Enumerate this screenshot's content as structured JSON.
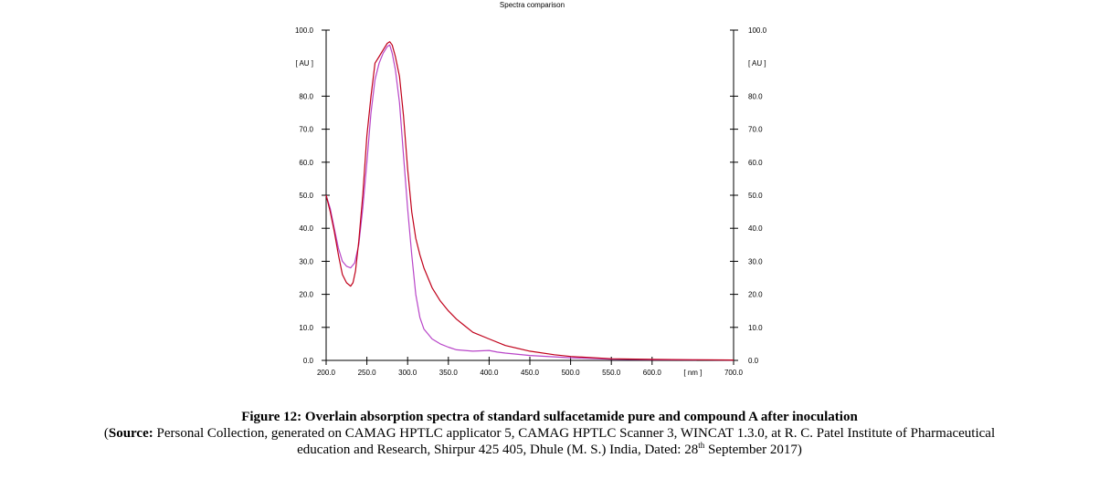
{
  "chart_data": {
    "type": "line",
    "title": "Spectra comparison",
    "xlabel": "[ nm ]",
    "ylabel": "[ AU ]",
    "xlim": [
      200,
      700
    ],
    "ylim": [
      0,
      100
    ],
    "x_ticks": [
      200,
      250,
      300,
      350,
      400,
      450,
      500,
      550,
      600,
      700
    ],
    "x_tick_labels": [
      "200.0",
      "250.0",
      "300.0",
      "350.0",
      "400.0",
      "450.0",
      "500.0",
      "550.0",
      "600.0",
      "700.0"
    ],
    "y_ticks": [
      0,
      10,
      20,
      30,
      40,
      50,
      60,
      70,
      80,
      100
    ],
    "y_tick_labels": [
      "0.0",
      "10.0",
      "20.0",
      "30.0",
      "40.0",
      "50.0",
      "60.0",
      "70.0",
      "80.0",
      "100.0"
    ],
    "series": [
      {
        "color": "#c0001a",
        "x": [
          200,
          205,
          210,
          215,
          220,
          225,
          230,
          233,
          236,
          240,
          245,
          250,
          255,
          260,
          265,
          270,
          275,
          278,
          281,
          285,
          290,
          295,
          300,
          305,
          310,
          315,
          320,
          325,
          330,
          340,
          350,
          360,
          370,
          380,
          400,
          420,
          450,
          480,
          500,
          550,
          600,
          650,
          700
        ],
        "y": [
          50,
          45,
          39,
          32,
          26,
          23.5,
          22.5,
          23.5,
          27,
          36,
          50,
          68,
          80,
          90,
          92,
          94,
          96,
          96.5,
          95.5,
          92,
          86,
          74,
          58,
          45,
          37,
          32,
          28,
          25,
          22,
          18,
          15,
          12.5,
          10.5,
          8.5,
          6.5,
          4.5,
          2.8,
          1.7,
          1.2,
          0.5,
          0.3,
          0.2,
          0.1
        ]
      },
      {
        "color": "#b845c8",
        "x": [
          200,
          205,
          210,
          215,
          220,
          225,
          230,
          235,
          240,
          245,
          250,
          255,
          260,
          265,
          270,
          275,
          278,
          281,
          285,
          290,
          295,
          300,
          305,
          310,
          315,
          320,
          330,
          340,
          350,
          360,
          370,
          380,
          390,
          400,
          410,
          420,
          450,
          500,
          550,
          600,
          700
        ],
        "y": [
          50,
          46,
          40,
          34,
          30,
          28.5,
          28,
          29.5,
          35,
          46,
          60,
          75,
          85,
          90,
          93,
          95,
          95.5,
          93,
          88,
          78,
          62,
          46,
          32,
          20,
          13,
          9.5,
          6.5,
          5,
          4,
          3.2,
          3,
          2.8,
          2.9,
          3,
          2.5,
          2.2,
          1.5,
          0.8,
          0.4,
          0.2,
          0.1
        ]
      }
    ]
  },
  "caption": {
    "figure": "Figure 12: Overlain absorption spectra of standard sulfacetamide pure and compound A after inoculation",
    "source_open": "(",
    "source_label": "Source:",
    "source_text": " Personal Collection, generated on CAMAG HPTLC applicator 5, CAMAG HPTLC Scanner 3, WINCAT 1.3.0, at R. C. Patel Institute of Pharmaceutical",
    "source_line2_a": "education and Research, Shirpur 425 405, Dhule (M. S.) India, Dated: 28",
    "source_sup": "th",
    "source_line2_b": " September 2017)"
  }
}
